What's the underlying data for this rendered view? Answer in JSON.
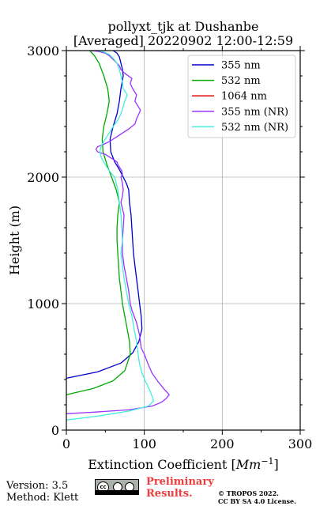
{
  "chart_data": {
    "type": "line",
    "title_line1": "pollyxt_tjk at Dushanbe",
    "title_line2": "[Averaged] 20220902 12:00-12:59",
    "xlabel": "Extinction Coefficient [",
    "xlabel_unit_base": "Mm",
    "xlabel_unit_exp": "−1",
    "xlabel_close": "]",
    "ylabel": "Height (m)",
    "xlim": [
      0,
      300
    ],
    "ylim": [
      0,
      3000
    ],
    "xticks": [
      0,
      100,
      200,
      300
    ],
    "yticks": [
      0,
      1000,
      2000,
      3000
    ],
    "grid": true,
    "legend_position": "top-right",
    "series": [
      {
        "name": "355 nm",
        "color": "#0000cc",
        "x": [
          0,
          40,
          70,
          85,
          93,
          97,
          96,
          94,
          92,
          90,
          88,
          86,
          85,
          84,
          83,
          81,
          80,
          77,
          73,
          68,
          62,
          57,
          56,
          60,
          65,
          68,
          70,
          73,
          72,
          70,
          68,
          65,
          60
        ],
        "y": [
          410,
          460,
          530,
          610,
          700,
          800,
          900,
          1000,
          1100,
          1200,
          1300,
          1400,
          1500,
          1600,
          1700,
          1800,
          1900,
          1950,
          2000,
          2060,
          2120,
          2200,
          2300,
          2400,
          2500,
          2600,
          2700,
          2800,
          2850,
          2900,
          2950,
          2980,
          3000
        ]
      },
      {
        "name": "532 nm",
        "color": "#00aa00",
        "x": [
          0,
          35,
          60,
          75,
          82,
          81,
          78,
          75,
          72,
          70,
          68,
          67,
          66,
          65,
          65,
          66,
          68,
          64,
          58,
          52,
          47,
          46,
          48,
          52,
          55,
          53,
          48,
          42,
          36,
          30
        ],
        "y": [
          280,
          330,
          390,
          470,
          600,
          700,
          800,
          900,
          1000,
          1100,
          1200,
          1300,
          1400,
          1500,
          1600,
          1700,
          1800,
          1900,
          2000,
          2100,
          2200,
          2300,
          2400,
          2500,
          2600,
          2700,
          2800,
          2900,
          2960,
          3000
        ]
      },
      {
        "name": "1064 nm",
        "color": "#dd0000",
        "x": [],
        "y": []
      },
      {
        "name": "355 nm (NR)",
        "color": "#9933ff",
        "x": [
          0,
          30,
          80,
          110,
          122,
          128,
          132,
          126,
          118,
          110,
          105,
          100,
          96,
          95,
          94,
          92,
          90,
          87,
          84,
          82,
          80,
          77,
          74,
          72,
          72,
          73,
          74,
          72,
          70,
          72,
          73,
          72,
          70,
          72,
          71,
          68,
          66,
          65,
          60,
          55,
          50,
          45,
          40,
          38,
          40,
          48,
          55,
          60,
          65,
          70,
          80,
          88,
          90,
          93,
          95,
          92,
          88,
          90,
          85,
          82,
          84,
          75,
          70,
          68,
          65,
          60,
          55,
          50,
          40,
          30
        ],
        "y": [
          130,
          140,
          160,
          190,
          220,
          250,
          280,
          320,
          380,
          450,
          520,
          600,
          650,
          700,
          750,
          800,
          850,
          900,
          950,
          1000,
          1100,
          1200,
          1300,
          1400,
          1500,
          1600,
          1700,
          1750,
          1800,
          1850,
          1900,
          1950,
          2000,
          2020,
          2050,
          2080,
          2100,
          2120,
          2140,
          2160,
          2180,
          2190,
          2200,
          2220,
          2240,
          2260,
          2280,
          2300,
          2320,
          2340,
          2380,
          2420,
          2460,
          2500,
          2530,
          2560,
          2600,
          2650,
          2700,
          2740,
          2780,
          2820,
          2850,
          2880,
          2900,
          2930,
          2960,
          2980,
          2995,
          3000
        ]
      },
      {
        "name": "532 nm (NR)",
        "color": "#44eedd",
        "x": [
          0,
          40,
          80,
          105,
          112,
          108,
          102,
          97,
          94,
          92,
          90,
          87,
          84,
          80,
          77,
          74,
          72,
          70,
          72,
          71,
          70,
          68,
          66,
          62,
          55,
          50,
          45,
          43,
          45,
          50,
          55,
          60,
          66,
          70,
          75,
          78,
          73,
          72,
          70,
          68,
          65,
          60,
          55,
          48,
          40
        ],
        "y": [
          80,
          110,
          150,
          190,
          230,
          300,
          380,
          450,
          520,
          600,
          700,
          800,
          900,
          1000,
          1100,
          1200,
          1300,
          1400,
          1500,
          1600,
          1700,
          1800,
          1900,
          2000,
          2050,
          2100,
          2150,
          2200,
          2250,
          2300,
          2350,
          2400,
          2450,
          2500,
          2600,
          2650,
          2700,
          2750,
          2800,
          2850,
          2900,
          2940,
          2970,
          2990,
          3000
        ]
      }
    ]
  },
  "footer": {
    "version": "Version: 3.5",
    "method": "Method: Klett",
    "prelim_line1": "Preliminary",
    "prelim_line2": "Results.",
    "tropos_line1": "© TROPOS 2022.",
    "tropos_line2": "CC BY SA 4.0 License.",
    "cc_logo": "cc-by-sa-icon"
  }
}
